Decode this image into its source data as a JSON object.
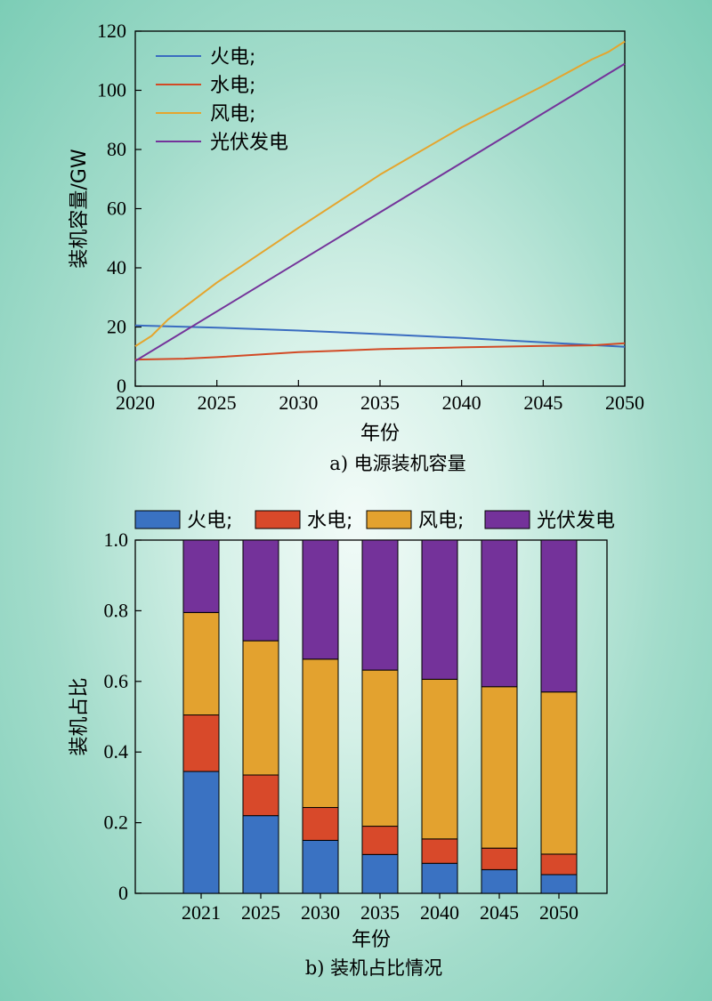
{
  "chart_data": [
    {
      "type": "line",
      "caption": "a) 电源装机容量",
      "xlabel": "年份",
      "ylabel": "装机容量/GW",
      "xlim": [
        2020,
        2050
      ],
      "ylim": [
        0,
        120
      ],
      "xticks": [
        2020,
        2025,
        2030,
        2035,
        2040,
        2045,
        2050
      ],
      "yticks": [
        0,
        20,
        40,
        60,
        80,
        100,
        120
      ],
      "legend_position": "top-left",
      "series": [
        {
          "name": "火电;",
          "color": "#3a6cc0",
          "x": [
            2020,
            2025,
            2030,
            2035,
            2040,
            2045,
            2050
          ],
          "y": [
            20.5,
            19.8,
            18.8,
            17.6,
            16.3,
            14.8,
            13.3
          ]
        },
        {
          "name": "水电;",
          "color": "#d24a25",
          "x": [
            2020,
            2023,
            2025,
            2030,
            2035,
            2040,
            2045,
            2048,
            2050
          ],
          "y": [
            9.0,
            9.3,
            9.8,
            11.5,
            12.5,
            13.1,
            13.6,
            13.8,
            14.5
          ]
        },
        {
          "name": "风电;",
          "color": "#e5a52e",
          "x": [
            2020,
            2021,
            2022,
            2025,
            2030,
            2035,
            2040,
            2045,
            2048,
            2049,
            2050
          ],
          "y": [
            13.5,
            17.0,
            22.5,
            35.0,
            53.5,
            71.5,
            87.5,
            101.5,
            110.5,
            113.0,
            116.5
          ]
        },
        {
          "name": "光伏发电",
          "color": "#74339a",
          "x": [
            2020,
            2050
          ],
          "y": [
            8.5,
            109.0
          ]
        }
      ]
    },
    {
      "type": "bar",
      "stacked": true,
      "caption": "b) 装机占比情况",
      "xlabel": "年份",
      "ylabel": "装机占比",
      "ylim": [
        0,
        1.0
      ],
      "yticks": [
        "0",
        "0.2",
        "0.4",
        "0.6",
        "0.8",
        "1.0"
      ],
      "legend_position": "top",
      "categories": [
        "2021",
        "2025",
        "2030",
        "2035",
        "2040",
        "2045",
        "2050"
      ],
      "series": [
        {
          "name": "火电;",
          "color": "#3a72c2",
          "values": [
            0.345,
            0.22,
            0.15,
            0.11,
            0.085,
            0.067,
            0.053
          ]
        },
        {
          "name": "水电;",
          "color": "#d8492a",
          "values": [
            0.16,
            0.115,
            0.093,
            0.08,
            0.069,
            0.061,
            0.058
          ]
        },
        {
          "name": "风电;",
          "color": "#e3a22f",
          "values": [
            0.29,
            0.38,
            0.42,
            0.442,
            0.452,
            0.457,
            0.459
          ]
        },
        {
          "name": "光伏发电",
          "color": "#74329a",
          "values": [
            0.205,
            0.285,
            0.337,
            0.368,
            0.394,
            0.415,
            0.43
          ]
        }
      ]
    }
  ]
}
